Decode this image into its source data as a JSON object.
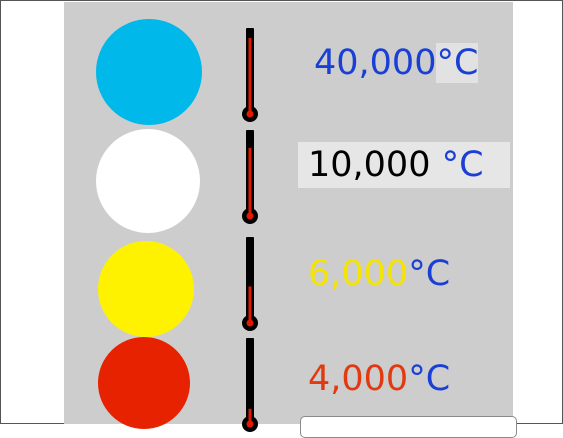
{
  "rows": [
    {
      "circle_color": "#00b8ea",
      "level": 0.95,
      "value": "40,000",
      "unit": "°C",
      "value_color": "#1a3fd6",
      "unit_color": "#1a3fd6"
    },
    {
      "circle_color": "#ffffff",
      "level": 0.85,
      "value": "10,000 ",
      "unit": "°C",
      "value_color": "#000000",
      "unit_color": "#1a3fd6"
    },
    {
      "circle_color": "#fff200",
      "level": 0.45,
      "value": "6,000",
      "unit": "°C",
      "value_color": "#f5e400",
      "unit_color": "#1a3fd6"
    },
    {
      "circle_color": "#e62200",
      "level": 0.18,
      "value": "4,000",
      "unit": "°C",
      "value_color": "#e23a10",
      "unit_color": "#1a3fd6"
    }
  ],
  "colors": {
    "panel": "#cdcdcd",
    "thermometer_body": "#000000",
    "thermometer_fluid": "#e01a00"
  }
}
